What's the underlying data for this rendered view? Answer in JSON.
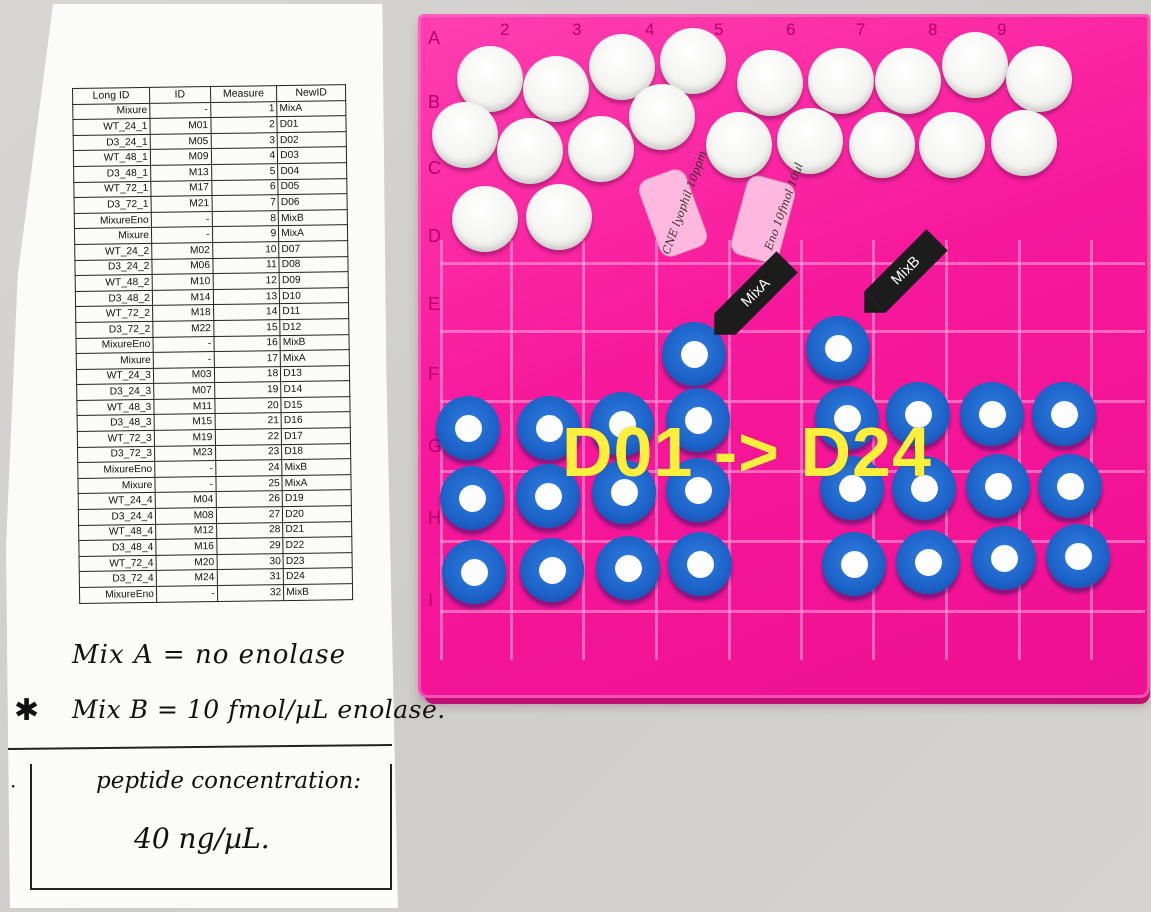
{
  "sheet": {
    "headers": [
      "Long ID",
      "ID",
      "Measure",
      "NewID"
    ],
    "rows": [
      [
        "Mixure",
        "-",
        "1",
        "MixA"
      ],
      [
        "WT_24_1",
        "M01",
        "2",
        "D01"
      ],
      [
        "D3_24_1",
        "M05",
        "3",
        "D02"
      ],
      [
        "WT_48_1",
        "M09",
        "4",
        "D03"
      ],
      [
        "D3_48_1",
        "M13",
        "5",
        "D04"
      ],
      [
        "WT_72_1",
        "M17",
        "6",
        "D05"
      ],
      [
        "D3_72_1",
        "M21",
        "7",
        "D06"
      ],
      [
        "MixureEno",
        "-",
        "8",
        "MixB"
      ],
      [
        "Mixure",
        "-",
        "9",
        "MixA"
      ],
      [
        "WT_24_2",
        "M02",
        "10",
        "D07"
      ],
      [
        "D3_24_2",
        "M06",
        "11",
        "D08"
      ],
      [
        "WT_48_2",
        "M10",
        "12",
        "D09"
      ],
      [
        "D3_48_2",
        "M14",
        "13",
        "D10"
      ],
      [
        "WT_72_2",
        "M18",
        "14",
        "D11"
      ],
      [
        "D3_72_2",
        "M22",
        "15",
        "D12"
      ],
      [
        "MixureEno",
        "-",
        "16",
        "MixB"
      ],
      [
        "Mixure",
        "-",
        "17",
        "MixA"
      ],
      [
        "WT_24_3",
        "M03",
        "18",
        "D13"
      ],
      [
        "D3_24_3",
        "M07",
        "19",
        "D14"
      ],
      [
        "WT_48_3",
        "M11",
        "20",
        "D15"
      ],
      [
        "D3_48_3",
        "M15",
        "21",
        "D16"
      ],
      [
        "WT_72_3",
        "M19",
        "22",
        "D17"
      ],
      [
        "D3_72_3",
        "M23",
        "23",
        "D18"
      ],
      [
        "MixureEno",
        "-",
        "24",
        "MixB"
      ],
      [
        "Mixure",
        "-",
        "25",
        "MixA"
      ],
      [
        "WT_24_4",
        "M04",
        "26",
        "D19"
      ],
      [
        "D3_24_4",
        "M08",
        "27",
        "D20"
      ],
      [
        "WT_48_4",
        "M12",
        "28",
        "D21"
      ],
      [
        "D3_48_4",
        "M16",
        "29",
        "D22"
      ],
      [
        "WT_72_4",
        "M20",
        "30",
        "D23"
      ],
      [
        "D3_72_4",
        "M24",
        "31",
        "D24"
      ],
      [
        "MixureEno",
        "-",
        "32",
        "MixB"
      ]
    ]
  },
  "notes": {
    "mix_a": "Mix A = no enolase",
    "mix_b": "Mix B = 10 fmol/µL enolase.",
    "star": "✱",
    "dot": "·",
    "concentration_title": "peptide concentration:",
    "concentration_value": "40 ng/µL."
  },
  "rack": {
    "color": "#f7189c",
    "column_labels": [
      "2",
      "3",
      "4",
      "5",
      "6",
      "7",
      "8",
      "9"
    ],
    "row_labels": [
      "A",
      "B",
      "C",
      "D",
      "E",
      "F",
      "G",
      "H",
      "I"
    ],
    "tags": [
      "MixA",
      "MixB"
    ],
    "tube_notes": [
      "CNE lyophil\n10ppm",
      "Eno\n10fmol\n10ul"
    ]
  },
  "overlay": {
    "text": "D01 -> D24",
    "color": "#ffef3d"
  }
}
